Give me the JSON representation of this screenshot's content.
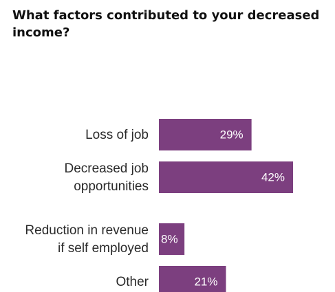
{
  "chart_data": {
    "type": "bar",
    "orientation": "horizontal",
    "title": "What factors contributed to your decreased income?",
    "categories": [
      [
        "Loss of job"
      ],
      [
        "Decreased job",
        "opportunities"
      ],
      [
        "Reduction in revenue",
        "if self employed"
      ],
      [
        "Other"
      ]
    ],
    "values": [
      29,
      42,
      8,
      21
    ],
    "value_labels": [
      "29%",
      "42%",
      "8%",
      "21%"
    ],
    "unit": "%",
    "xlim": [
      0,
      55
    ],
    "grid": false,
    "legend": "none",
    "bar_color": "#7c3f7f",
    "label_color": "#ffffff"
  }
}
